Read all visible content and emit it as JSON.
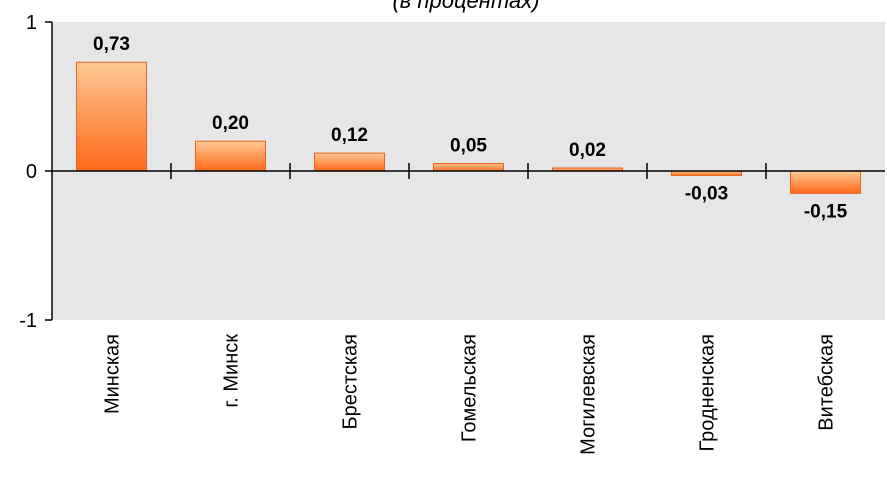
{
  "chart_data": {
    "type": "bar",
    "title": "(в процентах)",
    "categories": [
      "Минская",
      "г. Минск",
      "Брестская",
      "Гомельская",
      "Могилевская",
      "Гродненская",
      "Витебская"
    ],
    "values": [
      0.73,
      0.2,
      0.12,
      0.05,
      0.02,
      -0.03,
      -0.15
    ],
    "value_labels": [
      "0,73",
      "0,20",
      "0,12",
      "0,05",
      "0,02",
      "-0,03",
      "-0,15"
    ],
    "y_ticks": [
      1,
      0,
      -1
    ],
    "y_tick_labels": [
      "1",
      "0",
      "-1"
    ],
    "ylim": [
      -1,
      1
    ],
    "xlabel": "",
    "ylabel": "",
    "grid": false,
    "colors": {
      "plot_background": "#e6e6e6",
      "bar_top": "#ffc896",
      "bar_bottom": "#ff6a1a",
      "bar_border": "#e8621c",
      "axis": "#000000"
    }
  }
}
